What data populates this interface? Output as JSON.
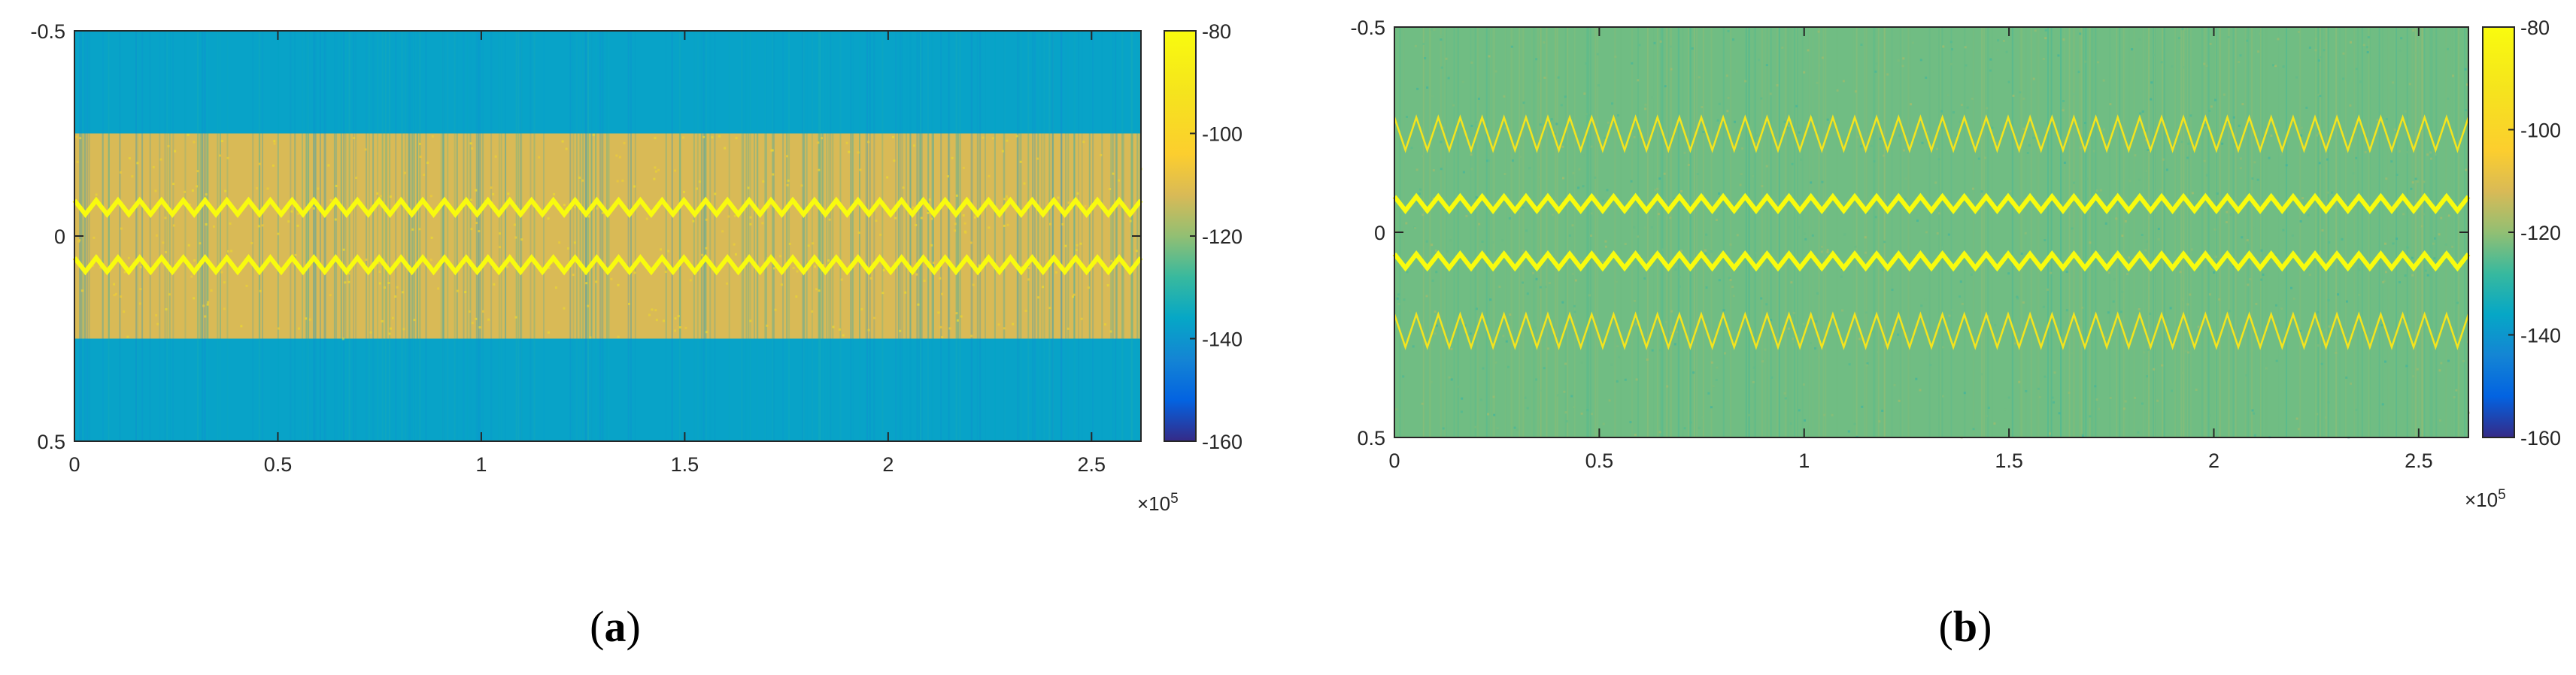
{
  "chart_data": [
    {
      "type": "heatmap",
      "panel_label": "a",
      "x_ticks": [
        "0",
        "0.5",
        "1",
        "1.5",
        "2",
        "2.5"
      ],
      "x_tick_values": [
        0,
        50000,
        100000,
        150000,
        200000,
        250000
      ],
      "x_multiplier": "×10",
      "x_multiplier_exponent": "5",
      "xlim": [
        0,
        262144
      ],
      "y_ticks": [
        "-0.5",
        "0",
        "0.5"
      ],
      "y_tick_values": [
        -0.5,
        0,
        0.5
      ],
      "ylim": [
        -0.5,
        0.5
      ],
      "y_reversed": true,
      "colorbar": {
        "ticks": [
          "-80",
          "-100",
          "-120",
          "-140",
          "-160"
        ],
        "tick_values": [
          -80,
          -100,
          -120,
          -140,
          -160
        ],
        "range": [
          -160,
          -80
        ],
        "colormap": "parula"
      },
      "background_level": -137,
      "band": {
        "y_range": [
          -0.25,
          0.25
        ],
        "level": -112
      },
      "zigzag_lines": [
        {
          "center": -0.07,
          "amplitude": 0.017,
          "cycles": 49,
          "level": -80,
          "weight": "thick"
        },
        {
          "center": 0.07,
          "amplitude": 0.017,
          "cycles": 49,
          "level": -80,
          "weight": "thick"
        }
      ],
      "grid": false
    },
    {
      "type": "heatmap",
      "panel_label": "b",
      "x_ticks": [
        "0",
        "0.5",
        "1",
        "1.5",
        "2",
        "2.5"
      ],
      "x_tick_values": [
        0,
        50000,
        100000,
        150000,
        200000,
        250000
      ],
      "x_multiplier": "×10",
      "x_multiplier_exponent": "5",
      "xlim": [
        0,
        262144
      ],
      "y_ticks": [
        "-0.5",
        "0",
        "0.5"
      ],
      "y_tick_values": [
        -0.5,
        0,
        0.5
      ],
      "ylim": [
        -0.5,
        0.5
      ],
      "y_reversed": true,
      "colorbar": {
        "ticks": [
          "-80",
          "-100",
          "-120",
          "-140",
          "-160"
        ],
        "tick_values": [
          -80,
          -100,
          -120,
          -140,
          -160
        ],
        "range": [
          -160,
          -80
        ],
        "colormap": "parula"
      },
      "background_level": -123,
      "zigzag_lines": [
        {
          "center": -0.24,
          "amplitude": 0.04,
          "cycles": 49,
          "level": -92,
          "weight": "thin"
        },
        {
          "center": -0.07,
          "amplitude": 0.017,
          "cycles": 49,
          "level": -80,
          "weight": "thick"
        },
        {
          "center": 0.07,
          "amplitude": 0.017,
          "cycles": 49,
          "level": -80,
          "weight": "thick"
        },
        {
          "center": 0.24,
          "amplitude": 0.04,
          "cycles": 49,
          "level": -92,
          "weight": "thin"
        }
      ],
      "grid": false
    }
  ],
  "captions": [
    {
      "open": "(",
      "letter": "a",
      "close": ")"
    },
    {
      "open": "(",
      "letter": "b",
      "close": ")"
    }
  ]
}
